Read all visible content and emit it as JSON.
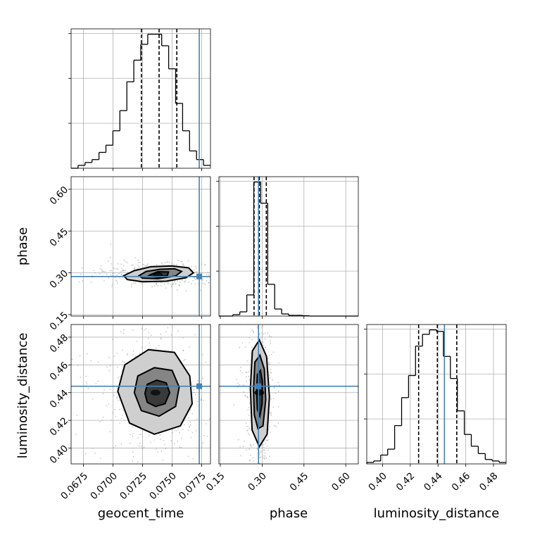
{
  "chart_data": {
    "type": "corner",
    "parameters": [
      "geocent_time",
      "phase",
      "luminosity_distance"
    ],
    "truths": {
      "geocent_time": 0.0773,
      "phase": 0.287,
      "luminosity_distance": 0.4446
    },
    "truth_color": "#4682b4",
    "quantiles": {
      "geocent_time": [
        0.0724,
        0.0739,
        0.0754
      ],
      "phase": [
        0.271,
        0.29,
        0.315
      ],
      "luminosity_distance": [
        0.426,
        0.4395,
        0.4535
      ]
    },
    "axes": {
      "geocent_time": {
        "range": [
          0.06645,
          0.07825
        ],
        "ticks": [
          0.0675,
          0.07,
          0.0725,
          0.075,
          0.0775
        ],
        "tick_labels": [
          "0.0675",
          "0.0700",
          "0.0725",
          "0.0750",
          "0.0775"
        ]
      },
      "phase": {
        "range": [
          0.145,
          0.645
        ],
        "ticks": [
          0.15,
          0.3,
          0.45,
          0.6
        ],
        "tick_labels": [
          "0.15",
          "0.30",
          "0.45",
          "0.60"
        ]
      },
      "luminosity_distance": {
        "range": [
          0.3886,
          0.4891
        ],
        "ticks": [
          0.4,
          0.42,
          0.44,
          0.46,
          0.48
        ],
        "tick_labels": [
          "0.40",
          "0.42",
          "0.44",
          "0.46",
          "0.48"
        ]
      }
    },
    "histograms": {
      "geocent_time": {
        "bin_edges": [
          0.06645,
          0.06704,
          0.06763,
          0.06822,
          0.06881,
          0.0694,
          0.06999,
          0.07058,
          0.07117,
          0.07176,
          0.07235,
          0.07294,
          0.07353,
          0.07412,
          0.07471,
          0.0753,
          0.07589,
          0.07648,
          0.07707,
          0.07766,
          0.07825
        ],
        "counts": [
          0,
          2,
          4,
          6,
          11,
          16,
          26,
          40,
          60,
          75,
          86,
          93,
          93,
          85,
          69,
          45,
          26,
          12,
          6,
          2
        ]
      },
      "phase": {
        "bin_edges": [
          0.145,
          0.17,
          0.195,
          0.22,
          0.245,
          0.27,
          0.295,
          0.32,
          0.345,
          0.37,
          0.395,
          0.42,
          0.445,
          0.47,
          0.495,
          0.52,
          0.545,
          0.57,
          0.595,
          0.62,
          0.645
        ],
        "counts": [
          0,
          0,
          2,
          6,
          30,
          190,
          160,
          45,
          10,
          3,
          1,
          1,
          0.5,
          0,
          0,
          0,
          0,
          0,
          0,
          0
        ]
      },
      "luminosity_distance": {
        "bin_edges": [
          0.3886,
          0.39363,
          0.39865,
          0.40368,
          0.4087,
          0.41373,
          0.41875,
          0.42378,
          0.4288,
          0.43383,
          0.43885,
          0.44388,
          0.4489,
          0.45393,
          0.45895,
          0.46398,
          0.469,
          0.47403,
          0.47905,
          0.48408,
          0.4891
        ],
        "counts": [
          1,
          2,
          6,
          10,
          26,
          45,
          60,
          80,
          88,
          91,
          90,
          73,
          58,
          36,
          20,
          12,
          7,
          3,
          2,
          1
        ]
      }
    },
    "posterior_2d": [
      {
        "x": "geocent_time",
        "y": "phase",
        "density_peak": [
          0.0738,
          0.292
        ],
        "contour_levels": [
          "inner",
          "middle",
          "outer"
        ],
        "contours": [
          [
            [
              0.0731,
              0.292
            ],
            [
              0.0738,
              0.304
            ],
            [
              0.0747,
              0.303
            ],
            [
              0.0746,
              0.29
            ],
            [
              0.0737,
              0.285
            ],
            [
              0.073,
              0.289
            ]
          ],
          [
            [
              0.0722,
              0.29
            ],
            [
              0.0728,
              0.305
            ],
            [
              0.074,
              0.313
            ],
            [
              0.0752,
              0.315
            ],
            [
              0.0758,
              0.305
            ],
            [
              0.0753,
              0.289
            ],
            [
              0.0738,
              0.279
            ],
            [
              0.0725,
              0.281
            ]
          ],
          [
            [
              0.0709,
              0.29
            ],
            [
              0.0718,
              0.308
            ],
            [
              0.0732,
              0.322
            ],
            [
              0.075,
              0.325
            ],
            [
              0.0764,
              0.318
            ],
            [
              0.0768,
              0.3
            ],
            [
              0.0762,
              0.283
            ],
            [
              0.0745,
              0.27
            ],
            [
              0.0725,
              0.268
            ],
            [
              0.0712,
              0.276
            ]
          ]
        ]
      },
      {
        "x": "geocent_time",
        "y": "luminosity_distance",
        "density_peak": [
          0.0736,
          0.44
        ],
        "contour_levels": [
          "inner",
          "middle",
          "outer"
        ],
        "contours": [
          [
            [
              0.0727,
              0.4395
            ],
            [
              0.0729,
              0.446
            ],
            [
              0.0737,
              0.449
            ],
            [
              0.0745,
              0.447
            ],
            [
              0.0748,
              0.44
            ],
            [
              0.0744,
              0.432
            ],
            [
              0.0736,
              0.43
            ],
            [
              0.0729,
              0.433
            ]
          ],
          [
            [
              0.0718,
              0.44
            ],
            [
              0.0721,
              0.452
            ],
            [
              0.0735,
              0.458
            ],
            [
              0.075,
              0.456
            ],
            [
              0.0756,
              0.444
            ],
            [
              0.0753,
              0.43
            ],
            [
              0.0739,
              0.423
            ],
            [
              0.0724,
              0.427
            ]
          ],
          [
            [
              0.0704,
              0.441
            ],
            [
              0.071,
              0.46
            ],
            [
              0.073,
              0.471
            ],
            [
              0.0752,
              0.469
            ],
            [
              0.0765,
              0.452
            ],
            [
              0.0767,
              0.432
            ],
            [
              0.0757,
              0.416
            ],
            [
              0.0735,
              0.41
            ],
            [
              0.0714,
              0.418
            ]
          ]
        ]
      },
      {
        "x": "phase",
        "y": "luminosity_distance",
        "density_peak": [
          0.29,
          0.44
        ],
        "contour_levels": [
          "inner",
          "middle",
          "outer"
        ],
        "contours": [
          [
            [
              0.28,
              0.441
            ],
            [
              0.283,
              0.453
            ],
            [
              0.294,
              0.456
            ],
            [
              0.301,
              0.448
            ],
            [
              0.3,
              0.432
            ],
            [
              0.292,
              0.423
            ],
            [
              0.283,
              0.428
            ]
          ],
          [
            [
              0.269,
              0.442
            ],
            [
              0.274,
              0.462
            ],
            [
              0.292,
              0.467
            ],
            [
              0.308,
              0.457
            ],
            [
              0.313,
              0.435
            ],
            [
              0.303,
              0.416
            ],
            [
              0.285,
              0.414
            ],
            [
              0.272,
              0.424
            ]
          ],
          [
            [
              0.258,
              0.443
            ],
            [
              0.265,
              0.47
            ],
            [
              0.29,
              0.478
            ],
            [
              0.316,
              0.466
            ],
            [
              0.326,
              0.437
            ],
            [
              0.318,
              0.41
            ],
            [
              0.29,
              0.401
            ],
            [
              0.264,
              0.413
            ]
          ]
        ]
      }
    ]
  }
}
